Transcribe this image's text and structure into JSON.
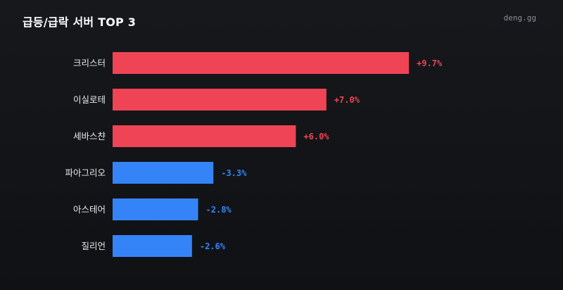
{
  "title": "급등/급락 서버 TOP 3",
  "brand": "deng.gg",
  "colors": {
    "up": "#ef4455",
    "down": "#3584f7"
  },
  "chart_data": {
    "type": "bar",
    "orientation": "horizontal",
    "title": "급등/급락 서버 TOP 3",
    "categories": [
      "크리스터",
      "이실로테",
      "세바스챤",
      "파아그리오",
      "아스테어",
      "질리언"
    ],
    "values": [
      9.7,
      7.0,
      6.0,
      -3.3,
      -2.8,
      -2.6
    ],
    "value_labels": [
      "+9.7%",
      "+7.0%",
      "+6.0%",
      "-3.3%",
      "-2.8%",
      "-2.6%"
    ],
    "grid": false,
    "legend": "none"
  }
}
